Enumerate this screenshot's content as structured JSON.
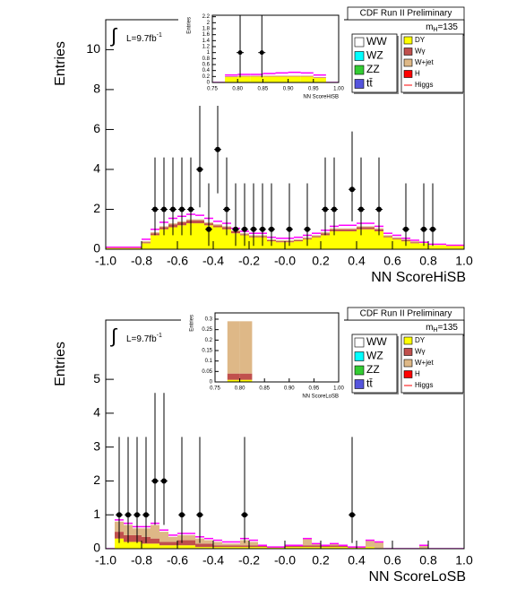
{
  "chart_data": [
    {
      "type": "histogram",
      "header": "CDF Run II Preliminary",
      "lumi": {
        "integral": "∫",
        "text": "L=9.7fb",
        "sup": "-1"
      },
      "mass": {
        "text": "m",
        "sub": "H",
        "value": "=135"
      },
      "xlabel": "NN ScoreHiSB",
      "ylabel": "Entries",
      "xlim": [
        -1,
        1
      ],
      "ylim": [
        0,
        11.5
      ],
      "xticks": [
        {
          "value": -1,
          "label": "-1.0"
        },
        -0.8,
        -0.6,
        -0.4,
        -0.2,
        {
          "value": 0,
          "label": "-0.0"
        },
        0.2,
        0.4,
        0.6,
        0.8,
        {
          "value": 1,
          "label": "1.0"
        }
      ],
      "yticks": [
        0,
        2,
        4,
        6,
        8,
        10
      ],
      "bins": [
        -1,
        -0.95,
        -0.9,
        -0.85,
        -0.8,
        -0.75,
        -0.7,
        -0.65,
        -0.6,
        -0.55,
        -0.5,
        -0.45,
        -0.4,
        -0.35,
        -0.3,
        -0.25,
        -0.2,
        -0.15,
        -0.1,
        -0.05,
        0,
        0.05,
        0.1,
        0.15,
        0.2,
        0.25,
        0.3,
        0.35,
        0.4,
        0.45,
        0.5,
        0.55,
        0.6,
        0.65,
        0.7,
        0.75,
        0.8,
        0.85,
        0.9,
        0.95,
        1
      ],
      "series": [
        {
          "name": "DY",
          "color": "#ffff00",
          "values": [
            0.1,
            0.1,
            0.1,
            0.1,
            0.3,
            0.7,
            1.0,
            1.1,
            1.2,
            1.3,
            1.3,
            1.2,
            1.1,
            1.0,
            0.8,
            0.7,
            0.6,
            0.6,
            0.4,
            0.35,
            0.35,
            0.4,
            0.5,
            0.6,
            0.7,
            0.9,
            0.9,
            0.9,
            1.0,
            1.0,
            0.9,
            0.6,
            0.5,
            0.4,
            0.3,
            0.3,
            0.2,
            0.2,
            0.2,
            0.2
          ]
        },
        {
          "name": "Wγ",
          "color": "#c0504d",
          "values": [
            0,
            0,
            0,
            0,
            0.05,
            0.1,
            0.1,
            0.15,
            0.15,
            0.15,
            0.15,
            0.1,
            0.1,
            0.1,
            0.1,
            0.05,
            0.05,
            0.05,
            0.05,
            0.05,
            0.05,
            0.05,
            0.05,
            0.05,
            0.1,
            0.1,
            0.1,
            0.1,
            0.1,
            0.1,
            0.1,
            0.05,
            0.05,
            0.05,
            0.05,
            0,
            0,
            0,
            0,
            0
          ]
        },
        {
          "name": "W+jet",
          "color": "#deb887",
          "values": [
            0,
            0,
            0,
            0,
            0.05,
            0.05,
            0.05,
            0.05,
            0.05,
            0.05,
            0.05,
            0.05,
            0.05,
            0.05,
            0.05,
            0.05,
            0.05,
            0.05,
            0.05,
            0.05,
            0.05,
            0.05,
            0.05,
            0.05,
            0.05,
            0.05,
            0.05,
            0.05,
            0.05,
            0.05,
            0.05,
            0.05,
            0.05,
            0.05,
            0.05,
            0,
            0,
            0,
            0,
            0
          ]
        },
        {
          "name": "Higgs",
          "color": "#ff00ff",
          "style": "line",
          "values": [
            0,
            0,
            0,
            0,
            0.1,
            0.15,
            0.2,
            0.25,
            0.25,
            0.25,
            0.2,
            0.2,
            0.15,
            0.15,
            0.1,
            0.1,
            0.1,
            0.1,
            0.1,
            0.1,
            0.1,
            0.1,
            0.1,
            0.1,
            0.1,
            0.1,
            0.15,
            0.15,
            0.15,
            0.15,
            0.1,
            0.1,
            0.1,
            0.05,
            0.05,
            0.05,
            0.05,
            0.05,
            0,
            0
          ]
        }
      ],
      "points": {
        "x": [
          -0.725,
          -0.675,
          -0.625,
          -0.575,
          -0.525,
          -0.475,
          -0.425,
          -0.375,
          -0.325,
          -0.275,
          -0.225,
          -0.175,
          -0.125,
          -0.075,
          0.025,
          0.125,
          0.225,
          0.275,
          0.375,
          0.425,
          0.525,
          0.675,
          0.775,
          0.825
        ],
        "values": [
          2,
          2,
          2,
          2,
          2,
          4,
          1,
          5,
          2,
          1,
          1,
          1,
          1,
          1,
          1,
          1,
          2,
          2,
          3,
          2,
          2,
          1,
          1,
          1
        ],
        "err_low": [
          1.3,
          1.3,
          1.3,
          1.3,
          1.3,
          1.9,
          0.83,
          2.2,
          1.3,
          0.83,
          0.83,
          0.83,
          0.83,
          0.83,
          0.83,
          0.83,
          1.3,
          1.3,
          1.6,
          1.3,
          1.3,
          0.83,
          0.83,
          0.83
        ],
        "err_high": [
          2.6,
          2.6,
          2.6,
          2.6,
          2.6,
          3.2,
          2.3,
          3.4,
          2.6,
          2.3,
          2.3,
          2.3,
          2.3,
          2.3,
          2.3,
          2.3,
          2.6,
          2.6,
          2.9,
          2.6,
          2.6,
          2.3,
          2.3,
          2.3
        ]
      },
      "legend": [
        {
          "name": "WW",
          "color": "#ffffff",
          "style": "box"
        },
        {
          "name": "WZ",
          "color": "#00ffff",
          "style": "box"
        },
        {
          "name": "ZZ",
          "color": "#33cc33",
          "style": "box"
        },
        {
          "name": "tt̄",
          "color": "#5555dd",
          "style": "box"
        },
        {
          "name": "DY",
          "color": "#ffff00",
          "style": "box"
        },
        {
          "name": "Wγ",
          "color": "#c0504d",
          "style": "box"
        },
        {
          "name": "W+jet",
          "color": "#deb887",
          "style": "box"
        },
        {
          "name": "H",
          "color": "#ff0000",
          "style": "box"
        },
        {
          "name": "Higgs",
          "color": "#ff0000",
          "style": "line"
        }
      ]
    },
    {
      "type": "histogram",
      "xlabel": "NN ScoreHiSB",
      "ylabel": "Entries",
      "xlim": [
        0.75,
        1
      ],
      "ylim": [
        0,
        2.25
      ],
      "xticks": [
        0.75,
        {
          "value": 0.8,
          "label": "0.80"
        },
        0.85,
        {
          "value": 0.9,
          "label": "0.90"
        },
        0.95,
        {
          "value": 1,
          "label": "1.00"
        }
      ],
      "yticks": [
        0,
        0.2,
        0.4,
        0.6,
        0.8,
        1,
        1.2,
        1.4,
        1.6,
        1.8,
        2,
        2.2
      ],
      "bins": [
        0.75,
        0.775,
        0.8,
        0.825,
        0.85,
        0.875,
        0.9,
        0.925,
        0.95,
        0.975,
        1
      ],
      "series": [
        {
          "name": "DY",
          "color": "#ffff00",
          "values": [
            0,
            0.18,
            0.2,
            0.2,
            0.2,
            0.2,
            0.2,
            0.2,
            0.15,
            0
          ]
        },
        {
          "name": "Wγ",
          "color": "#c0504d",
          "values": [
            0,
            0.02,
            0.02,
            0.02,
            0.02,
            0.02,
            0.02,
            0.02,
            0.02,
            0
          ]
        },
        {
          "name": "Higgs",
          "color": "#ff00ff",
          "style": "line",
          "values": [
            0,
            0.05,
            0.05,
            0.05,
            0.08,
            0.1,
            0.12,
            0.1,
            0.08,
            0
          ]
        }
      ],
      "points": {
        "x": [
          0.805,
          0.848
        ],
        "values": [
          1,
          1
        ],
        "err_low": [
          0.83,
          0.83
        ],
        "err_high": [
          2.3,
          2.3
        ]
      }
    },
    {
      "type": "histogram",
      "header": "CDF Run II Preliminary",
      "lumi": {
        "integral": "∫",
        "text": "L=9.7fb",
        "sup": "-1"
      },
      "mass": {
        "text": "m",
        "sub": "H",
        "value": "=135"
      },
      "xlabel": "NN ScoreLoSB",
      "ylabel": "Entries",
      "xlim": [
        -1,
        1
      ],
      "ylim": [
        0,
        6.75
      ],
      "xticks": [
        {
          "value": -1,
          "label": "-1.0"
        },
        -0.8,
        -0.6,
        -0.4,
        -0.2,
        {
          "value": 0,
          "label": "-0.0"
        },
        0.2,
        0.4,
        0.6,
        0.8,
        {
          "value": 1,
          "label": "1.0"
        }
      ],
      "yticks": [
        0,
        1,
        2,
        3,
        4,
        5
      ],
      "bins": [
        -1,
        -0.95,
        -0.9,
        -0.85,
        -0.8,
        -0.75,
        -0.7,
        -0.65,
        -0.6,
        -0.55,
        -0.5,
        -0.45,
        -0.4,
        -0.35,
        -0.3,
        -0.25,
        -0.2,
        -0.15,
        -0.1,
        -0.05,
        0,
        0.05,
        0.1,
        0.15,
        0.2,
        0.25,
        0.3,
        0.35,
        0.4,
        0.45,
        0.5,
        0.55,
        0.6,
        0.65,
        0.7,
        0.75,
        0.8,
        0.85,
        0.9,
        0.95,
        1
      ],
      "series": [
        {
          "name": "DY",
          "color": "#ffff00",
          "values": [
            0,
            0.3,
            0.2,
            0.2,
            0.15,
            0.15,
            0.1,
            0.1,
            0.1,
            0.1,
            0.05,
            0.05,
            0.05,
            0.05,
            0.05,
            0.05,
            0.05,
            0.05,
            0.05,
            0.05,
            0.05,
            0.05,
            0.05,
            0.05,
            0.05,
            0.05,
            0.05,
            0.05,
            0.05,
            0.05,
            0,
            0,
            0,
            0,
            0,
            0,
            0,
            0,
            0,
            0
          ]
        },
        {
          "name": "Wγ",
          "color": "#c0504d",
          "values": [
            0,
            0.2,
            0.2,
            0.2,
            0.2,
            0.15,
            0.1,
            0.1,
            0.15,
            0.15,
            0.1,
            0.1,
            0.05,
            0.05,
            0.05,
            0.05,
            0.05,
            0.05,
            0,
            0,
            0.05,
            0.05,
            0.05,
            0.05,
            0.05,
            0.05,
            0.05,
            0,
            0,
            0,
            0,
            0,
            0,
            0,
            0,
            0,
            0,
            0,
            0,
            0
          ]
        },
        {
          "name": "W+jet",
          "color": "#deb887",
          "values": [
            0,
            0.3,
            0.3,
            0.2,
            0.25,
            0.4,
            0.3,
            0.15,
            0.15,
            0.15,
            0.15,
            0.1,
            0.1,
            0.05,
            0.05,
            0.15,
            0.1,
            0,
            0,
            0,
            0,
            0,
            0.2,
            0.05,
            0,
            0.05,
            0,
            0,
            0,
            0.2,
            0.2,
            0,
            0,
            0,
            0,
            0.1,
            0,
            0,
            0,
            0
          ]
        },
        {
          "name": "Higgs",
          "color": "#ff00ff",
          "style": "line",
          "values": [
            0,
            0.05,
            0.05,
            0.05,
            0.05,
            0.05,
            0.05,
            0.05,
            0.05,
            0.05,
            0.05,
            0.05,
            0.05,
            0.05,
            0.05,
            0.05,
            0.05,
            0,
            0,
            0,
            0,
            0,
            0,
            0,
            0,
            0,
            0,
            0,
            0,
            0,
            0,
            0,
            0,
            0,
            0,
            0,
            0,
            0,
            0,
            0
          ]
        }
      ],
      "points": {
        "x": [
          -0.925,
          -0.875,
          -0.825,
          -0.775,
          -0.725,
          -0.675,
          -0.575,
          -0.475,
          -0.225,
          0.375
        ],
        "values": [
          1,
          1,
          1,
          1,
          2,
          2,
          1,
          1,
          1,
          1
        ],
        "err_low": [
          0.83,
          0.83,
          0.83,
          0.83,
          1.3,
          1.3,
          0.83,
          0.83,
          0.83,
          0.83
        ],
        "err_high": [
          2.3,
          2.3,
          2.3,
          2.3,
          2.6,
          2.6,
          2.3,
          2.3,
          2.3,
          2.3
        ]
      },
      "legend": [
        {
          "name": "WW",
          "color": "#ffffff",
          "style": "box"
        },
        {
          "name": "WZ",
          "color": "#00ffff",
          "style": "box"
        },
        {
          "name": "ZZ",
          "color": "#33cc33",
          "style": "box"
        },
        {
          "name": "tt̄",
          "color": "#5555dd",
          "style": "box"
        },
        {
          "name": "DY",
          "color": "#ffff00",
          "style": "box"
        },
        {
          "name": "Wγ",
          "color": "#c0504d",
          "style": "box"
        },
        {
          "name": "W+jet",
          "color": "#deb887",
          "style": "box"
        },
        {
          "name": "H",
          "color": "#ff0000",
          "style": "box"
        },
        {
          "name": "Higgs",
          "color": "#ff0000",
          "style": "line"
        }
      ]
    },
    {
      "type": "histogram",
      "xlabel": "NN ScoreLoSB",
      "ylabel": "Entries",
      "xlim": [
        0.75,
        1
      ],
      "ylim": [
        0,
        0.33
      ],
      "xticks": [
        0.75,
        {
          "value": 0.8,
          "label": "0.80"
        },
        0.85,
        {
          "value": 0.9,
          "label": "0.90"
        },
        0.95,
        {
          "value": 1,
          "label": "1.00"
        }
      ],
      "yticks": [
        0,
        0.05,
        0.1,
        0.15,
        0.2,
        0.25,
        0.3
      ],
      "bins": [
        0.75,
        0.775,
        0.8,
        0.825,
        0.85,
        0.875,
        0.9,
        0.925,
        0.95,
        0.975,
        1
      ],
      "series": [
        {
          "name": "DY",
          "color": "#ffff00",
          "values": [
            0,
            0.01,
            0.01,
            0,
            0,
            0,
            0,
            0,
            0,
            0
          ]
        },
        {
          "name": "Wγ",
          "color": "#c0504d",
          "values": [
            0,
            0.03,
            0.03,
            0,
            0,
            0,
            0,
            0,
            0,
            0
          ]
        },
        {
          "name": "W+jet",
          "color": "#deb887",
          "values": [
            0,
            0.25,
            0.25,
            0,
            0,
            0,
            0,
            0,
            0,
            0
          ]
        }
      ]
    }
  ]
}
